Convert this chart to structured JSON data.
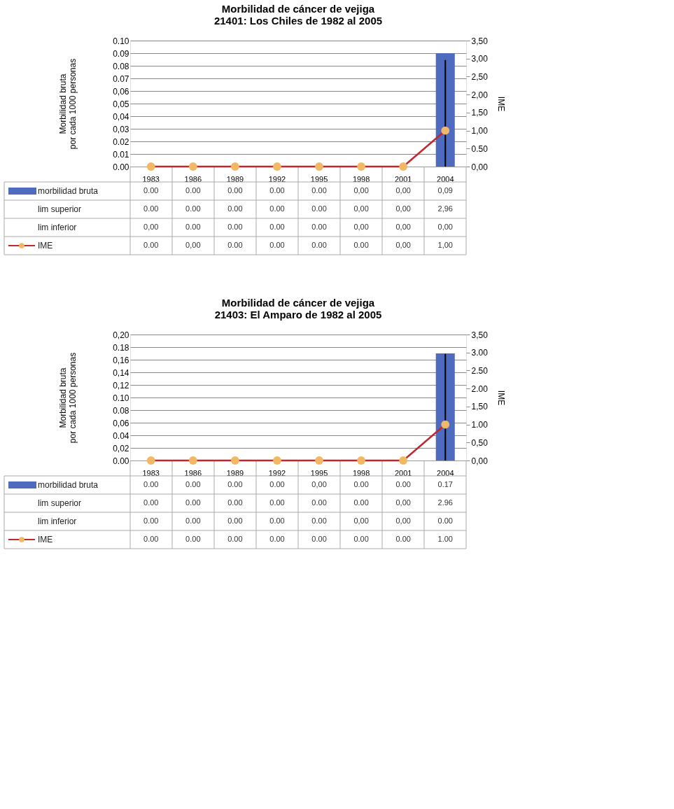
{
  "chart_data": [
    {
      "type": "bar",
      "title": [
        "Morbilidad  de cáncer de vejiga",
        "21401: Los Chiles de 1982 al 2005"
      ],
      "ylabel": "Morbilidad bruta\npor cada 1000 personas",
      "y2label": "IME",
      "categories": [
        "1983",
        "1986",
        "1989",
        "1992",
        "1995",
        "1998",
        "2001",
        "2004"
      ],
      "ylim": [
        0,
        0.1
      ],
      "yticks": [
        {
          "value": 0,
          "label": "0.00"
        },
        {
          "value": 0.01,
          "label": "0.01"
        },
        {
          "value": 0.02,
          "label": "0.02"
        },
        {
          "value": 0.03,
          "label": "0,03"
        },
        {
          "value": 0.04,
          "label": "0,04"
        },
        {
          "value": 0.05,
          "label": "0,05"
        },
        {
          "value": 0.06,
          "label": "0,06"
        },
        {
          "value": 0.07,
          "label": "0.07"
        },
        {
          "value": 0.08,
          "label": "0.08"
        },
        {
          "value": 0.09,
          "label": "0.09"
        },
        {
          "value": 0.1,
          "label": "0.10"
        }
      ],
      "y2lim": [
        0,
        3.5
      ],
      "y2ticks": [
        {
          "value": 0,
          "label": "0,00"
        },
        {
          "value": 0.5,
          "label": "0.50"
        },
        {
          "value": 1,
          "label": "1,00"
        },
        {
          "value": 1.5,
          "label": "1,50"
        },
        {
          "value": 2,
          "label": "2,00"
        },
        {
          "value": 2.5,
          "label": "2,50"
        },
        {
          "value": 3,
          "label": "3,00"
        },
        {
          "value": 3.5,
          "label": "3,50"
        }
      ],
      "grid": "y",
      "legend": "bottom",
      "series": [
        {
          "name": "morbilidad bruta",
          "type": "bar",
          "color": "#4f6bbf",
          "values": [
            0,
            0,
            0,
            0,
            0,
            0,
            0,
            0.09
          ],
          "value_labels": [
            "0.00",
            "0.00",
            "0.00",
            "0.00",
            "0.00",
            "0,00",
            "0,00",
            "0,09"
          ]
        },
        {
          "name": "lim superior",
          "type": "scatter",
          "marker": "none",
          "values": [
            null,
            null,
            null,
            null,
            null,
            null,
            null,
            null
          ],
          "value_labels": [
            "0.00",
            "0.00",
            "0.00",
            "0.00",
            "0.00",
            "0,00",
            "0,00",
            "2,96"
          ]
        },
        {
          "name": "lim inferior",
          "type": "scatter",
          "marker": "none",
          "values": [
            null,
            null,
            null,
            null,
            null,
            null,
            null,
            null
          ],
          "value_labels": [
            "0,00",
            "0.00",
            "0.00",
            "0.00",
            "0.00",
            "0,00",
            "0,00",
            "0,00"
          ]
        },
        {
          "name": "IME",
          "type": "line",
          "axis": "y2",
          "color": "#c0282d",
          "marker": "circle",
          "errors": [
            [
              0,
              0
            ],
            [
              0,
              0
            ],
            [
              0,
              0
            ],
            [
              0,
              0
            ],
            [
              0,
              0
            ],
            [
              0,
              0
            ],
            [
              0,
              0
            ],
            [
              0,
              2.96
            ]
          ],
          "colors": [
            "#f2b866",
            "#f2b866",
            "#f2b866",
            "#f2b866",
            "#f2b866",
            "#f2b866",
            "#f2b866",
            "#f2b866"
          ],
          "values": [
            0,
            0,
            0,
            0,
            0,
            0,
            0,
            1
          ],
          "value_labels": [
            "0.00",
            "0,00",
            "0.00",
            "0.00",
            "0.00",
            "0.00",
            "0,00",
            "1,00"
          ]
        }
      ]
    },
    {
      "type": "bar",
      "title": [
        "Morbilidad de cáncer de vejiga",
        "21403: El Amparo de 1982 al 2005"
      ],
      "ylabel": "Morbilidad bruta\npor cada 1000 personas",
      "y2label": "IME",
      "categories": [
        "1983",
        "1986",
        "1989",
        "1992",
        "1995",
        "1998",
        "2001",
        "2004"
      ],
      "ylim": [
        0,
        0.2
      ],
      "yticks": [
        {
          "value": 0,
          "label": "0.00"
        },
        {
          "value": 0.02,
          "label": "0,02"
        },
        {
          "value": 0.04,
          "label": "0.04"
        },
        {
          "value": 0.06,
          "label": "0,06"
        },
        {
          "value": 0.08,
          "label": "0.08"
        },
        {
          "value": 0.1,
          "label": "0.10"
        },
        {
          "value": 0.12,
          "label": "0,12"
        },
        {
          "value": 0.14,
          "label": "0,14"
        },
        {
          "value": 0.16,
          "label": "0,16"
        },
        {
          "value": 0.18,
          "label": "0.18"
        },
        {
          "value": 0.2,
          "label": "0,20"
        }
      ],
      "y2lim": [
        0,
        3.5
      ],
      "y2ticks": [
        {
          "value": 0,
          "label": "0,00"
        },
        {
          "value": 0.5,
          "label": "0,50"
        },
        {
          "value": 1,
          "label": "1.00"
        },
        {
          "value": 1.5,
          "label": "1,50"
        },
        {
          "value": 2,
          "label": "2.00"
        },
        {
          "value": 2.5,
          "label": "2.50"
        },
        {
          "value": 3,
          "label": "3.00"
        },
        {
          "value": 3.5,
          "label": "3,50"
        }
      ],
      "grid": "y",
      "legend": "bottom",
      "series": [
        {
          "name": "morbilidad bruta",
          "type": "bar",
          "color": "#4f6bbf",
          "values": [
            0,
            0,
            0,
            0,
            0,
            0,
            0,
            0.17
          ],
          "value_labels": [
            "0.00",
            "0.00",
            "0.00",
            "0.00",
            "0,00",
            "0.00",
            "0.00",
            "0.17"
          ]
        },
        {
          "name": "lim superior",
          "type": "scatter",
          "marker": "none",
          "values": [
            null,
            null,
            null,
            null,
            null,
            null,
            null,
            null
          ],
          "value_labels": [
            "0.00",
            "0.00",
            "0.00",
            "0.00",
            "0.00",
            "0.00",
            "0,00",
            "2.96"
          ]
        },
        {
          "name": "lim inferior",
          "type": "scatter",
          "marker": "none",
          "values": [
            null,
            null,
            null,
            null,
            null,
            null,
            null,
            null
          ],
          "value_labels": [
            "0.00",
            "0.00",
            "0.00",
            "0.00",
            "0.00",
            "0,00",
            "0,00",
            "0.00"
          ]
        },
        {
          "name": "IME",
          "type": "line",
          "axis": "y2",
          "color": "#c0282d",
          "marker": "circle",
          "errors": [
            [
              0,
              0
            ],
            [
              0,
              0
            ],
            [
              0,
              0
            ],
            [
              0,
              0
            ],
            [
              0,
              0
            ],
            [
              0,
              0
            ],
            [
              0,
              0
            ],
            [
              0,
              2.96
            ]
          ],
          "colors": [
            "#f2b866",
            "#f2b866",
            "#f2b866",
            "#f2b866",
            "#f2b866",
            "#f2b866",
            "#f2b866",
            "#f2b866"
          ],
          "values": [
            0,
            0,
            0,
            0,
            0,
            0,
            0,
            1
          ],
          "value_labels": [
            "0.00",
            "0.00",
            "0.00",
            "0.00",
            "0.00",
            "0.00",
            "0.00",
            "1.00"
          ]
        }
      ]
    }
  ]
}
